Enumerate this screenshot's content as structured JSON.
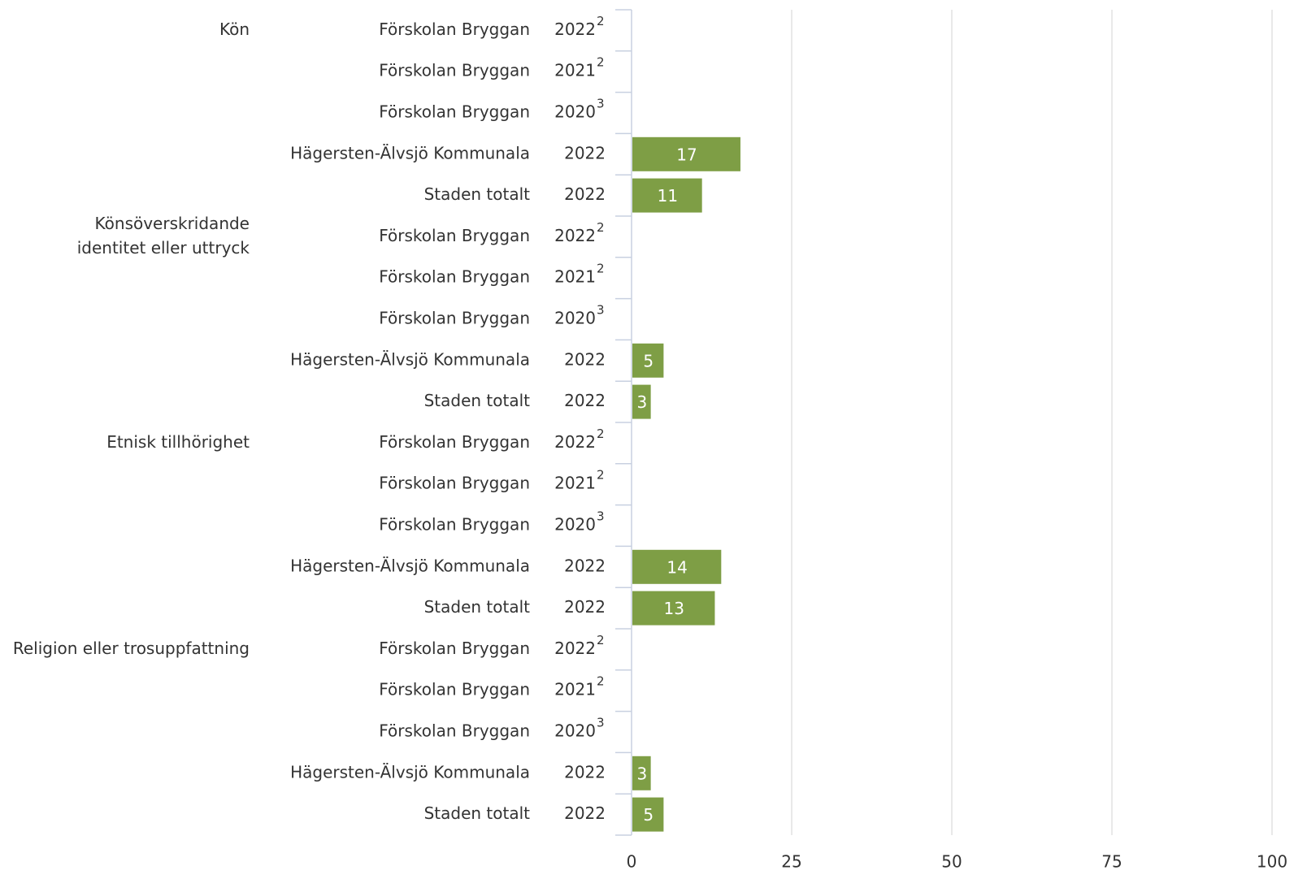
{
  "chart_data": {
    "type": "bar",
    "orientation": "horizontal",
    "color": "#7e9e45",
    "groups": [
      {
        "label": "Kön",
        "rows": [
          {
            "unit": "Förskolan Bryggan",
            "year": "2022",
            "note": "2"
          },
          {
            "unit": "Förskolan Bryggan",
            "year": "2021",
            "note": "2"
          },
          {
            "unit": "Förskolan Bryggan",
            "year": "2020",
            "note": "3"
          },
          {
            "unit": "Hägersten-Älvsjö Kommunala",
            "year": "2022"
          },
          {
            "unit": "Staden totalt",
            "year": "2022"
          }
        ]
      },
      {
        "label": [
          "Könsöverskridande",
          "identitet eller uttryck"
        ],
        "rows": [
          {
            "unit": "Förskolan Bryggan",
            "year": "2022",
            "note": "2"
          },
          {
            "unit": "Förskolan Bryggan",
            "year": "2021",
            "note": "2"
          },
          {
            "unit": "Förskolan Bryggan",
            "year": "2020",
            "note": "3"
          },
          {
            "unit": "Hägersten-Älvsjö Kommunala",
            "year": "2022"
          },
          {
            "unit": "Staden totalt",
            "year": "2022"
          }
        ]
      },
      {
        "label": "Etnisk tillhörighet",
        "rows": [
          {
            "unit": "Förskolan Bryggan",
            "year": "2022",
            "note": "2"
          },
          {
            "unit": "Förskolan Bryggan",
            "year": "2021",
            "note": "2"
          },
          {
            "unit": "Förskolan Bryggan",
            "year": "2020",
            "note": "3"
          },
          {
            "unit": "Hägersten-Älvsjö Kommunala",
            "year": "2022"
          },
          {
            "unit": "Staden totalt",
            "year": "2022"
          }
        ]
      },
      {
        "label": "Religion eller trosuppfattning",
        "rows": [
          {
            "unit": "Förskolan Bryggan",
            "year": "2022",
            "note": "2"
          },
          {
            "unit": "Förskolan Bryggan",
            "year": "2021",
            "note": "2"
          },
          {
            "unit": "Förskolan Bryggan",
            "year": "2020",
            "note": "3"
          },
          {
            "unit": "Hägersten-Älvsjö Kommunala",
            "year": "2022"
          },
          {
            "unit": "Staden totalt",
            "year": "2022"
          }
        ]
      }
    ],
    "values": [
      null,
      null,
      null,
      17,
      11,
      null,
      null,
      null,
      5,
      3,
      null,
      null,
      null,
      14,
      13,
      null,
      null,
      null,
      3,
      5
    ],
    "xlim": [
      0,
      100
    ],
    "xticks": [
      0,
      25,
      50,
      75,
      100
    ],
    "grid": true
  }
}
